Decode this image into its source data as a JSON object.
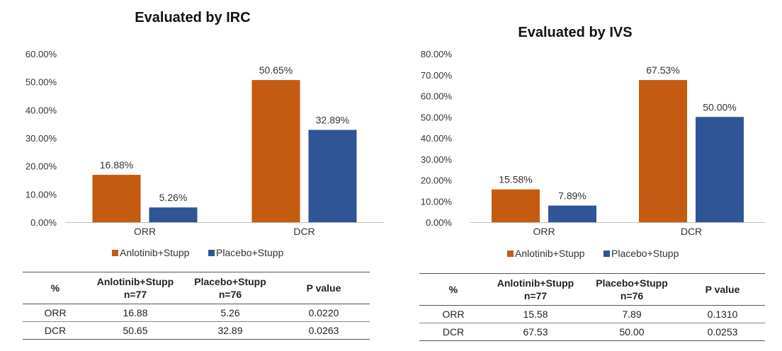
{
  "colors": {
    "anlotinib": "#C55A11",
    "placebo": "#2F5597",
    "axis": "#BFBFBF"
  },
  "chart_data": [
    {
      "type": "bar",
      "title": "Evaluated by IRC",
      "categories": [
        "ORR",
        "DCR"
      ],
      "series": [
        {
          "name": "Anlotinib+Stupp",
          "values": [
            16.88,
            50.65
          ],
          "labels": [
            "16.88%",
            "50.65%"
          ]
        },
        {
          "name": "Placebo+Stupp",
          "values": [
            5.26,
            32.89
          ],
          "labels": [
            "5.26%",
            "32.89%"
          ]
        }
      ],
      "ylim": [
        0,
        60
      ],
      "yticks": [
        "0.00%",
        "10.00%",
        "20.00%",
        "30.00%",
        "40.00%",
        "50.00%",
        "60.00%"
      ],
      "legend": "bottom",
      "table": {
        "headers": [
          [
            "%"
          ],
          [
            "Anlotinib+Stupp",
            "n=77"
          ],
          [
            "Placebo+Stupp",
            "n=76"
          ],
          [
            "P value"
          ]
        ],
        "rows": [
          [
            "ORR",
            "16.88",
            "5.26",
            "0.0220"
          ],
          [
            "DCR",
            "50.65",
            "32.89",
            "0.0263"
          ]
        ]
      }
    },
    {
      "type": "bar",
      "title": "Evaluated by IVS",
      "categories": [
        "ORR",
        "DCR"
      ],
      "series": [
        {
          "name": "Anlotinib+Stupp",
          "values": [
            15.58,
            67.53
          ],
          "labels": [
            "15.58%",
            "67.53%"
          ]
        },
        {
          "name": "Placebo+Stupp",
          "values": [
            7.89,
            50.0
          ],
          "labels": [
            "7.89%",
            "50.00%"
          ]
        }
      ],
      "ylim": [
        0,
        80
      ],
      "yticks": [
        "0.00%",
        "10.00%",
        "20.00%",
        "30.00%",
        "40.00%",
        "50.00%",
        "60.00%",
        "70.00%",
        "80.00%"
      ],
      "legend": "bottom",
      "table": {
        "headers": [
          [
            "%"
          ],
          [
            "Anlotinib+Stupp",
            "n=77"
          ],
          [
            "Placebo+Stupp",
            "n=76"
          ],
          [
            "P value"
          ]
        ],
        "rows": [
          [
            "ORR",
            "15.58",
            "7.89",
            "0.1310"
          ],
          [
            "DCR",
            "67.53",
            "50.00",
            "0.0253"
          ]
        ]
      }
    }
  ]
}
